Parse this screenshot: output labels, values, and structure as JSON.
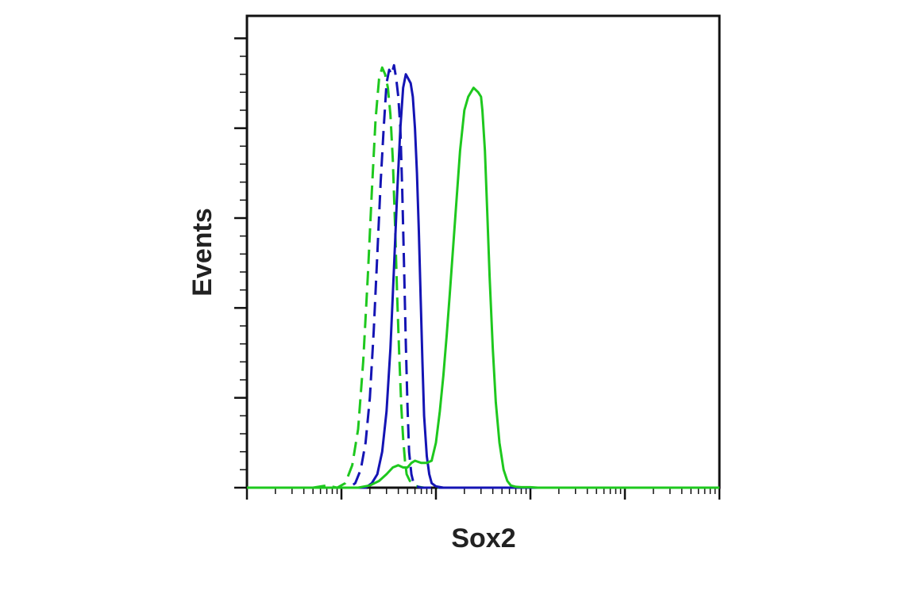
{
  "chart_data": {
    "type": "line",
    "title": "",
    "xlabel": "Sox2",
    "ylabel": "Events",
    "x_scale": "log",
    "xlim": [
      1,
      100000
    ],
    "ylim": [
      0,
      105
    ],
    "x_tick_labels": false,
    "y_tick_labels": false,
    "grid": false,
    "legend": "none",
    "series": [
      {
        "color": "#1ec81e",
        "dash": "dashed",
        "x": [
          1,
          5,
          7,
          9,
          11,
          13,
          15,
          17,
          19,
          21,
          23,
          25,
          27,
          29,
          31,
          33,
          35,
          37,
          39,
          41,
          43,
          45,
          47,
          49,
          53,
          56,
          60,
          65,
          75,
          100000
        ],
        "y": [
          0,
          0,
          0.5,
          0,
          1,
          5,
          13,
          28,
          47,
          66,
          82,
          91,
          93.5,
          92,
          89,
          83,
          73,
          58,
          42,
          29,
          18,
          11,
          6,
          3,
          1.5,
          1,
          0.5,
          0.2,
          0,
          0
        ]
      },
      {
        "color": "#1414b4",
        "dash": "dashed",
        "x": [
          1,
          12,
          14,
          16,
          18,
          20,
          22,
          24,
          26,
          28,
          30,
          32,
          34,
          36,
          38,
          40,
          42,
          44,
          46,
          48,
          50,
          52,
          55,
          58,
          62,
          70,
          100000
        ],
        "y": [
          0,
          0,
          1,
          4,
          10,
          20,
          35,
          52,
          68,
          80,
          90,
          93,
          92,
          94,
          91,
          87,
          80,
          66,
          49,
          32,
          18,
          8,
          3,
          1,
          0.3,
          0,
          0
        ]
      },
      {
        "color": "#1414b4",
        "dash": "solid",
        "x": [
          1,
          18,
          21,
          24,
          27,
          30,
          33,
          36,
          39,
          42,
          45,
          48,
          51,
          54,
          57,
          60,
          63,
          66,
          69,
          72,
          75,
          80,
          85,
          90,
          100,
          120,
          100000
        ],
        "y": [
          0,
          0,
          1,
          3,
          8,
          17,
          31,
          49,
          66,
          80,
          89,
          92,
          91,
          90,
          87,
          80,
          70,
          57,
          42,
          28,
          16,
          7,
          3,
          1,
          0.3,
          0,
          0
        ]
      },
      {
        "color": "#1ec81e",
        "dash": "solid",
        "x": [
          1,
          15,
          20,
          25,
          30,
          35,
          40,
          45,
          50,
          55,
          60,
          70,
          80,
          90,
          100,
          110,
          120,
          130,
          140,
          160,
          180,
          200,
          220,
          250,
          280,
          300,
          310,
          330,
          350,
          370,
          400,
          430,
          470,
          520,
          570,
          620,
          700,
          800,
          900,
          1000,
          1200,
          100000
        ],
        "y": [
          0,
          0,
          0.5,
          1.5,
          3,
          4.5,
          5,
          4.5,
          4.5,
          5.5,
          6,
          5.5,
          5.5,
          6,
          10,
          17,
          25,
          34,
          43,
          60,
          75,
          84,
          87,
          89,
          88,
          87,
          84,
          75,
          61,
          47,
          31,
          19,
          10,
          4,
          1.5,
          0.5,
          0.2,
          0.1,
          0.1,
          0.1,
          0,
          0
        ]
      }
    ]
  }
}
